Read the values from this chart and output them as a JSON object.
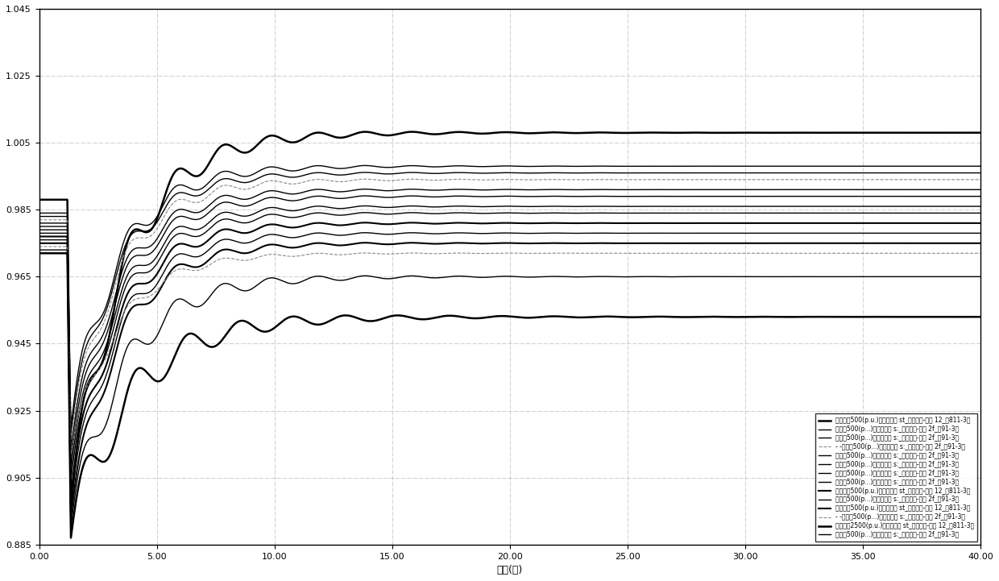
{
  "title": "",
  "xlabel": "时间(秒)",
  "ylabel": "",
  "xlim": [
    0.0,
    40.0
  ],
  "ylim": [
    0.885,
    1.045
  ],
  "xticks": [
    0.0,
    5.0,
    10.0,
    15.0,
    20.0,
    25.0,
    30.0,
    35.0,
    40.0
  ],
  "xtick_labels": [
    "0.00",
    "5.00",
    "10.00",
    "15.00",
    "20.00",
    "25.00",
    "30.00",
    "35.00",
    "40.00"
  ],
  "yticks": [
    0.885,
    0.905,
    0.925,
    0.945,
    0.965,
    0.985,
    1.005,
    1.025,
    1.045
  ],
  "ytick_labels": [
    "0.885",
    "0.905",
    "0.925",
    "0.945",
    "0.965",
    "0.985",
    "1.005",
    "1.025",
    "1.045"
  ],
  "background_color": "#ffffff",
  "grid_color": "#999999",
  "legend_entries": [
    "湘长阴诺500(p.u.)（母线电压 st_双极闭锁-心部 12_高811-3）",
    "湘星城500(p...)（母线电压 s:_双极闭锁-记部 2f_高91-3）",
    "湘古亭500(p...)（母线电压 s:_双极闭锁-记部 2f_高91-3）",
    "- -湘鹤岭500(p...)（母线电压 s:_双极闭锁-记部 2f_高91-3）",
    "湘罗城500(p...)（母线电压 s:_双极闭锁-记部 2f_高91-3）",
    "湘点巴500(p...)（母线电压 s:_双极闭锁-记部 2f_高91-3）",
    "湘云田500(p...)（母线电压 s:_双极闭锁-记部 2f_高91-3）",
    "湘复兴500(p...)（母线电压 s:_双极闭锁-记部 2f_高91-3）",
    "湘安客冲500(p.u.)（母线电压 st_双极闭锁-心部 12_高811-3）",
    "湘民丰500(p...)（母线电压 s:_双极闭锁-记部 2f_高91-3）",
    "湘长阴诺500(p.u.)（母线电压 st_双极闭锁-心部 12_高811-3）",
    "- -湘陸山500(p...)（母线电压 s:_双极闭锁-记部 2f_高91-3）",
    "湘都山捄2500(p.u.)（母线电压 st_双极闭锁-心部 12_高811-3）",
    "湘沙坪500(p...)（母线电压 s:_双极闭锁-记部 2f_高91-3）"
  ],
  "line_styles": [
    "solid",
    "solid",
    "solid",
    "dashed",
    "solid",
    "solid",
    "solid",
    "solid",
    "solid",
    "solid",
    "solid",
    "dashed",
    "solid",
    "solid"
  ],
  "line_colors": [
    "#000000",
    "#000000",
    "#000000",
    "#888888",
    "#000000",
    "#000000",
    "#000000",
    "#000000",
    "#000000",
    "#000000",
    "#000000",
    "#888888",
    "#000000",
    "#000000"
  ],
  "line_widths": [
    1.8,
    1.0,
    1.0,
    0.8,
    1.0,
    1.0,
    1.0,
    1.0,
    1.5,
    1.0,
    1.5,
    0.8,
    1.8,
    1.0
  ],
  "curves": [
    {
      "v0": 0.988,
      "v_min": 0.895,
      "v_steady": 1.008,
      "osc_amp": 0.01,
      "osc_freq": 0.5,
      "decay": 0.18,
      "t_event": 1.2,
      "t_dur": 0.15
    },
    {
      "v0": 0.984,
      "v_min": 0.92,
      "v_steady": 0.998,
      "osc_amp": 0.007,
      "osc_freq": 0.5,
      "decay": 0.2,
      "t_event": 1.2,
      "t_dur": 0.15
    },
    {
      "v0": 0.983,
      "v_min": 0.918,
      "v_steady": 0.996,
      "osc_amp": 0.006,
      "osc_freq": 0.5,
      "decay": 0.2,
      "t_event": 1.2,
      "t_dur": 0.15
    },
    {
      "v0": 0.982,
      "v_min": 0.916,
      "v_steady": 0.994,
      "osc_amp": 0.006,
      "osc_freq": 0.5,
      "decay": 0.2,
      "t_event": 1.2,
      "t_dur": 0.15
    },
    {
      "v0": 0.981,
      "v_min": 0.913,
      "v_steady": 0.991,
      "osc_amp": 0.006,
      "osc_freq": 0.5,
      "decay": 0.2,
      "t_event": 1.2,
      "t_dur": 0.15
    },
    {
      "v0": 0.98,
      "v_min": 0.91,
      "v_steady": 0.989,
      "osc_amp": 0.006,
      "osc_freq": 0.5,
      "decay": 0.2,
      "t_event": 1.2,
      "t_dur": 0.15
    },
    {
      "v0": 0.979,
      "v_min": 0.907,
      "v_steady": 0.986,
      "osc_amp": 0.006,
      "osc_freq": 0.5,
      "decay": 0.2,
      "t_event": 1.2,
      "t_dur": 0.15
    },
    {
      "v0": 0.978,
      "v_min": 0.904,
      "v_steady": 0.984,
      "osc_amp": 0.006,
      "osc_freq": 0.5,
      "decay": 0.2,
      "t_event": 1.2,
      "t_dur": 0.15
    },
    {
      "v0": 0.977,
      "v_min": 0.9,
      "v_steady": 0.981,
      "osc_amp": 0.006,
      "osc_freq": 0.5,
      "decay": 0.2,
      "t_event": 1.2,
      "t_dur": 0.15
    },
    {
      "v0": 0.976,
      "v_min": 0.897,
      "v_steady": 0.978,
      "osc_amp": 0.006,
      "osc_freq": 0.5,
      "decay": 0.2,
      "t_event": 1.2,
      "t_dur": 0.15
    },
    {
      "v0": 0.975,
      "v_min": 0.893,
      "v_steady": 0.975,
      "osc_amp": 0.006,
      "osc_freq": 0.5,
      "decay": 0.2,
      "t_event": 1.2,
      "t_dur": 0.15
    },
    {
      "v0": 0.974,
      "v_min": 0.912,
      "v_steady": 0.972,
      "osc_amp": 0.004,
      "osc_freq": 0.5,
      "decay": 0.2,
      "t_event": 1.2,
      "t_dur": 0.15
    },
    {
      "v0": 0.972,
      "v_min": 0.887,
      "v_steady": 0.953,
      "osc_amp": 0.01,
      "osc_freq": 0.45,
      "decay": 0.16,
      "t_event": 1.2,
      "t_dur": 0.15
    },
    {
      "v0": 0.973,
      "v_min": 0.89,
      "v_steady": 0.965,
      "osc_amp": 0.008,
      "osc_freq": 0.5,
      "decay": 0.18,
      "t_event": 1.2,
      "t_dur": 0.15
    }
  ]
}
